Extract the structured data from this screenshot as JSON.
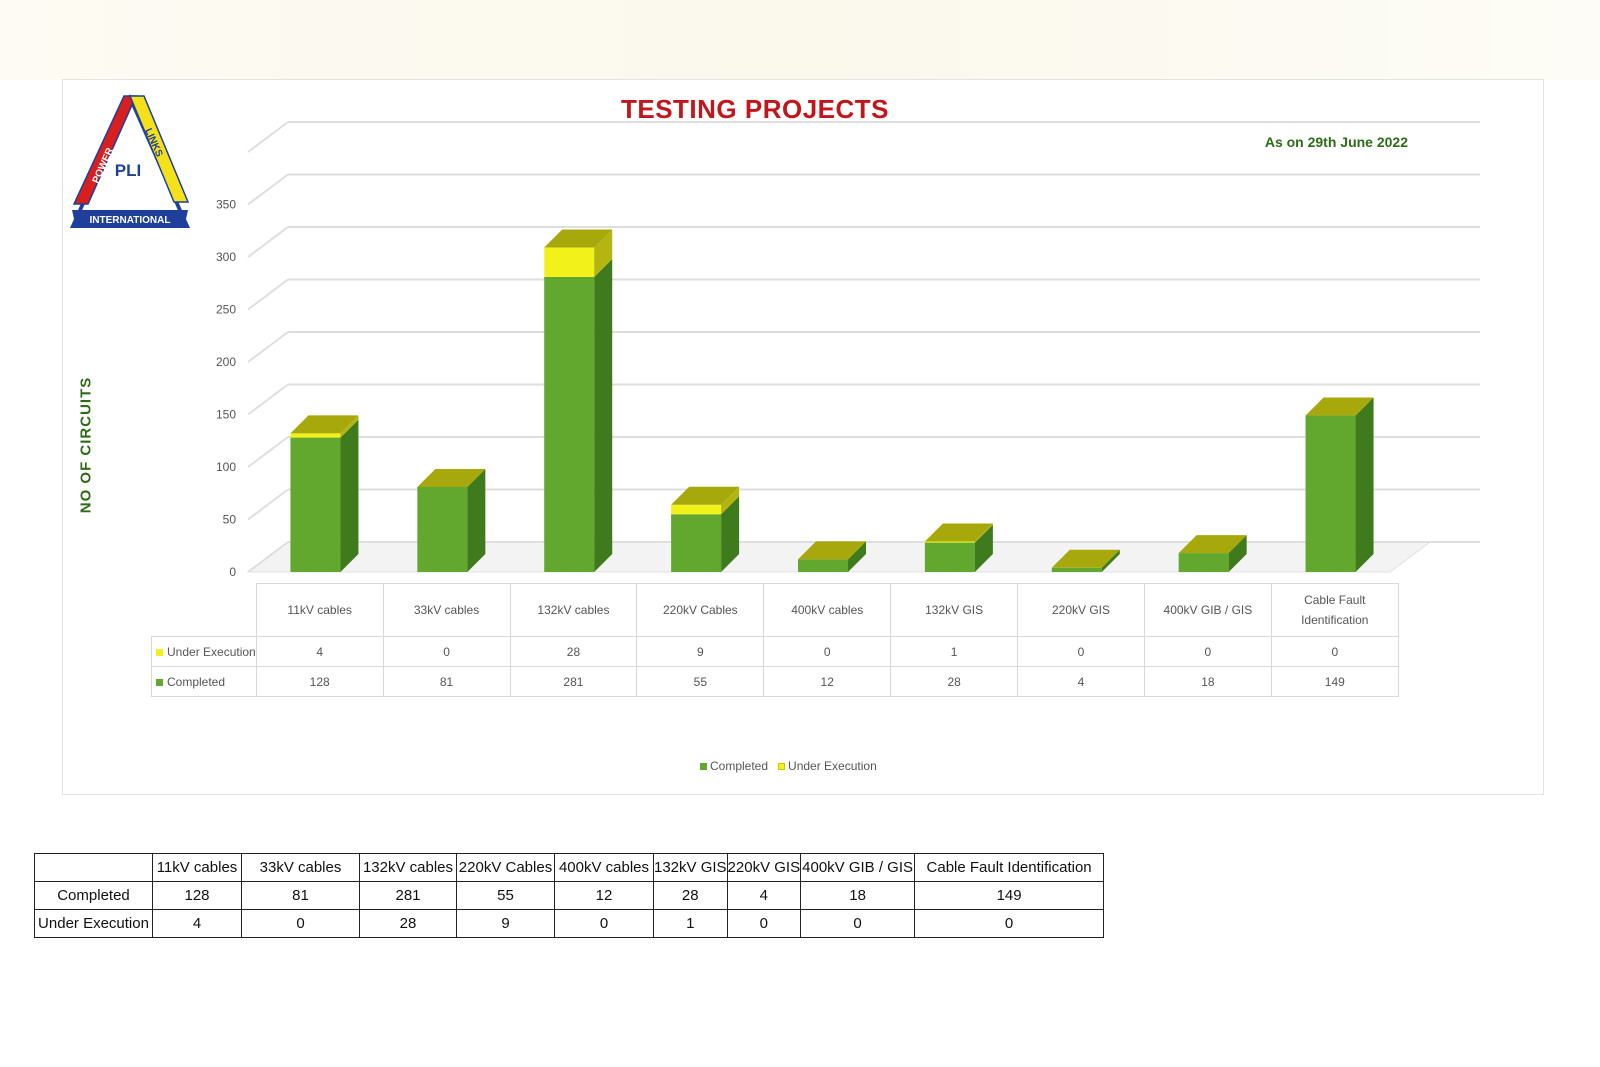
{
  "chart_data": {
    "type": "bar",
    "title": "TESTING PROJECTS",
    "subtitle": "As on 29th June 2022",
    "ylabel": "NO OF CIRCUITS",
    "xlabel": "",
    "stacked": true,
    "three_d": true,
    "categories": [
      "11kV cables",
      "33kV cables",
      "132kV cables",
      "220kV Cables",
      "400kV cables",
      "132kV GIS",
      "220kV GIS",
      "400kV GIB / GIS",
      "Cable Fault Identification"
    ],
    "series": [
      {
        "name": "Completed",
        "values": [
          128,
          81,
          281,
          55,
          12,
          28,
          4,
          18,
          149
        ],
        "color": "#62a72e"
      },
      {
        "name": "Under Execution",
        "values": [
          4,
          0,
          28,
          9,
          0,
          1,
          0,
          0,
          0
        ],
        "color": "#f2f21a"
      }
    ],
    "ylim": [
      0,
      350
    ],
    "yticks": [
      0,
      50,
      100,
      150,
      200,
      250,
      300,
      350
    ],
    "grid": true,
    "legend_position": "bottom"
  },
  "chart_table": {
    "categories": [
      "11kV cables",
      "33kV cables",
      "132kV cables",
      "220kV Cables",
      "400kV cables",
      "132kV GIS",
      "220kV GIS",
      "400kV GIB / GIS",
      "Cable Fault\nIdentification"
    ],
    "rows": [
      {
        "label": "Under Execution",
        "color": "#f2f21a",
        "values": [
          "4",
          "0",
          "28",
          "9",
          "0",
          "1",
          "0",
          "0",
          "0"
        ]
      },
      {
        "label": "Completed",
        "color": "#62a72e",
        "values": [
          "128",
          "81",
          "281",
          "55",
          "12",
          "28",
          "4",
          "18",
          "149"
        ]
      }
    ]
  },
  "summary_table": {
    "headers": [
      "11kV cables",
      "33kV cables",
      "132kV cables",
      "220kV Cables",
      "400kV cables",
      "132kV GIS",
      "220kV GIS",
      "400kV GIB / GIS",
      "Cable Fault Identification"
    ],
    "rows": [
      {
        "label": "Completed",
        "values": [
          "128",
          "81",
          "281",
          "55",
          "12",
          "28",
          "4",
          "18",
          "149"
        ]
      },
      {
        "label": "Under Execution",
        "values": [
          "4",
          "0",
          "28",
          "9",
          "0",
          "1",
          "0",
          "0",
          "0"
        ]
      }
    ]
  },
  "logo": {
    "text_left": "POWER",
    "text_right": "LINKS",
    "text_bottom": "INTERNATIONAL",
    "text_center": "PLI"
  },
  "legend": {
    "items": [
      {
        "label": "Completed",
        "color": "#62a72e"
      },
      {
        "label": "Under Execution",
        "color": "#f2f21a"
      }
    ]
  }
}
